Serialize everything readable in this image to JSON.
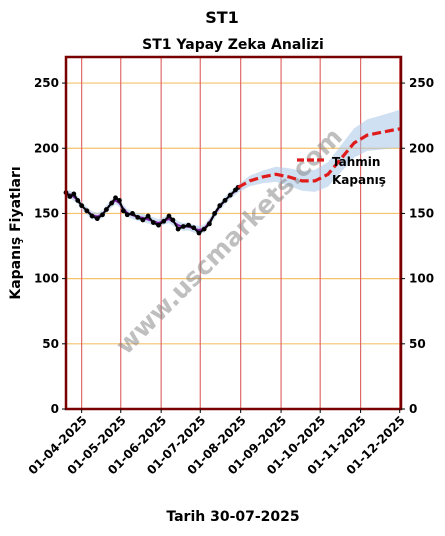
{
  "chart_data": {
    "type": "line",
    "suptitle": "ST1",
    "title": "ST1 Yapay Zeka Analizi",
    "xlabel": "Tarih 30-07-2025",
    "ylabel": "Kapanış Fiyatları",
    "ylim": [
      0,
      270
    ],
    "yticks": [
      0,
      50,
      100,
      150,
      200,
      250
    ],
    "xlim": [
      "2025-03-20",
      "2025-12-02"
    ],
    "xticks": [
      "2025-04-01",
      "2025-05-01",
      "2025-06-01",
      "2025-07-01",
      "2025-08-01",
      "2025-09-01",
      "2025-10-01",
      "2025-11-01",
      "2025-12-01"
    ],
    "xtick_labels": [
      "01-04-2025",
      "01-05-2025",
      "01-06-2025",
      "01-07-2025",
      "01-08-2025",
      "01-09-2025",
      "01-10-2025",
      "01-11-2025",
      "01-12-2025"
    ],
    "grid": true,
    "legend": {
      "position": "right",
      "entries": [
        "Tahmin",
        "Kapanış"
      ]
    },
    "watermark": "www.uscmarkets.com",
    "colors": {
      "actual": "#000000",
      "fit": "#7b1fa2",
      "forecast": "#e01b1b",
      "band": "#a7c7e7",
      "hgrid": "#f5c26b",
      "vgrid": "#e06a6a",
      "frame": "#7a0000"
    },
    "series": [
      {
        "name": "Kapanış",
        "x": [
          "2025-03-20",
          "2025-03-23",
          "2025-03-26",
          "2025-03-29",
          "2025-04-01",
          "2025-04-05",
          "2025-04-09",
          "2025-04-13",
          "2025-04-17",
          "2025-04-20",
          "2025-04-24",
          "2025-04-27",
          "2025-04-30",
          "2025-05-03",
          "2025-05-06",
          "2025-05-10",
          "2025-05-14",
          "2025-05-18",
          "2025-05-22",
          "2025-05-26",
          "2025-05-30",
          "2025-06-03",
          "2025-06-07",
          "2025-06-10",
          "2025-06-14",
          "2025-06-18",
          "2025-06-22",
          "2025-06-26",
          "2025-06-30",
          "2025-07-04",
          "2025-07-08",
          "2025-07-12",
          "2025-07-16",
          "2025-07-20",
          "2025-07-24",
          "2025-07-28",
          "2025-07-30"
        ],
        "y": [
          166,
          163,
          165,
          160,
          156,
          152,
          148,
          146,
          149,
          153,
          158,
          162,
          160,
          152,
          149,
          150,
          147,
          145,
          148,
          143,
          141,
          144,
          148,
          145,
          138,
          140,
          141,
          139,
          135,
          138,
          142,
          150,
          156,
          160,
          164,
          168,
          170
        ]
      },
      {
        "name": "Tahmin",
        "x": [
          "2025-07-30",
          "2025-08-08",
          "2025-08-18",
          "2025-08-28",
          "2025-09-07",
          "2025-09-17",
          "2025-09-27",
          "2025-10-07",
          "2025-10-17",
          "2025-10-27",
          "2025-11-06",
          "2025-11-16",
          "2025-11-26",
          "2025-12-02"
        ],
        "y": [
          170,
          175,
          178,
          180,
          178,
          175,
          175,
          180,
          192,
          204,
          210,
          212,
          214,
          215
        ]
      }
    ]
  }
}
